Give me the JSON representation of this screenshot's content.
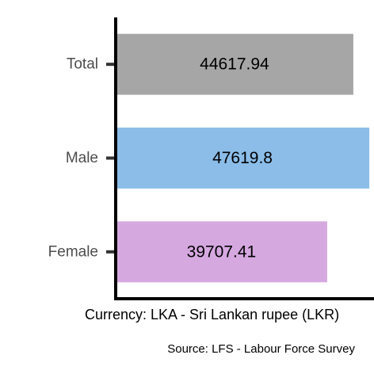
{
  "chart_data": {
    "type": "bar",
    "orientation": "horizontal",
    "categories": [
      "Total",
      "Male",
      "Female"
    ],
    "values": [
      44617.94,
      47619.8,
      39707.41
    ],
    "value_labels": [
      "44617.94",
      "47619.8",
      "39707.41"
    ],
    "colors": [
      "#a6a6a6",
      "#8bbde8",
      "#d6a8e0"
    ],
    "xlabel": "Currency: LKA - Sri Lankan rupee (LKR)",
    "caption": "Source:  LFS - Labour Force Survey",
    "xlim": [
      0,
      48500
    ],
    "grid": false,
    "legend": "none"
  }
}
